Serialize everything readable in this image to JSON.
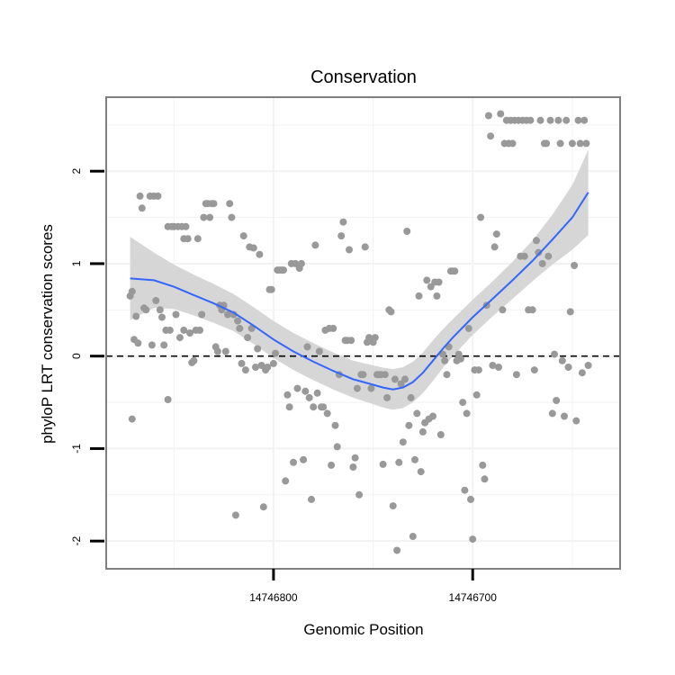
{
  "chart_data": {
    "type": "scatter",
    "title": "Conservation",
    "xlabel": "Genomic Position",
    "ylabel": "phyloP LRT conservation scores",
    "x_reversed": true,
    "xlim": [
      14746884,
      14746626
    ],
    "ylim": [
      -2.3,
      2.8
    ],
    "x_ticks": [
      {
        "value": 14746800,
        "label": "14746800"
      },
      {
        "value": 14746700,
        "label": "14746700"
      }
    ],
    "y_ticks": [
      {
        "value": -2,
        "label": "-2"
      },
      {
        "value": -1,
        "label": "-1"
      },
      {
        "value": 0,
        "label": "0"
      },
      {
        "value": 1,
        "label": "1"
      },
      {
        "value": 2,
        "label": "2"
      }
    ],
    "grid": true,
    "reference_line": {
      "y": 0,
      "style": "dashed"
    },
    "colors": {
      "points": "#999999",
      "smooth_line": "#3366ff",
      "confidence_band": "#d6d6d6",
      "grid": "#f2f2f2",
      "panel_border": "#7f7f7f"
    },
    "points": [
      [
        14746872,
        0.65
      ],
      [
        14746871,
        0.7
      ],
      [
        14746871,
        -0.68
      ],
      [
        14746870,
        0.18
      ],
      [
        14746869,
        0.43
      ],
      [
        14746868,
        0.14
      ],
      [
        14746867,
        1.73
      ],
      [
        14746866,
        1.6
      ],
      [
        14746865,
        0.52
      ],
      [
        14746864,
        0.5
      ],
      [
        14746862,
        1.73
      ],
      [
        14746861,
        0.12
      ],
      [
        14746860,
        1.73
      ],
      [
        14746859,
        0.6
      ],
      [
        14746858,
        1.73
      ],
      [
        14746857,
        0.5
      ],
      [
        14746856,
        0.42
      ],
      [
        14746855,
        0.12
      ],
      [
        14746854,
        0.28
      ],
      [
        14746853,
        1.4
      ],
      [
        14746853,
        -0.47
      ],
      [
        14746852,
        0.28
      ],
      [
        14746851,
        1.4
      ],
      [
        14746850,
        1.4
      ],
      [
        14746849,
        0.45
      ],
      [
        14746848,
        1.4
      ],
      [
        14746847,
        0.2
      ],
      [
        14746846,
        1.4
      ],
      [
        14746845,
        1.27
      ],
      [
        14746845,
        0.28
      ],
      [
        14746844,
        1.4
      ],
      [
        14746843,
        1.27
      ],
      [
        14746842,
        0.25
      ],
      [
        14746841,
        -0.07
      ],
      [
        14746840,
        -0.05
      ],
      [
        14746839,
        0.28
      ],
      [
        14746838,
        1.27
      ],
      [
        14746837,
        0.28
      ],
      [
        14746836,
        0.45
      ],
      [
        14746835,
        1.5
      ],
      [
        14746834,
        1.65
      ],
      [
        14746833,
        1.65
      ],
      [
        14746832,
        1.5
      ],
      [
        14746831,
        1.65
      ],
      [
        14746830,
        1.65
      ],
      [
        14746829,
        0.1
      ],
      [
        14746828,
        0.05
      ],
      [
        14746827,
        0.55
      ],
      [
        14746826,
        0.5
      ],
      [
        14746825,
        0.55
      ],
      [
        14746824,
        0.05
      ],
      [
        14746823,
        0.45
      ],
      [
        14746822,
        1.65
      ],
      [
        14746821,
        1.5
      ],
      [
        14746820,
        0.45
      ],
      [
        14746819,
        -1.72
      ],
      [
        14746818,
        0.38
      ],
      [
        14746817,
        0.3
      ],
      [
        14746816,
        -0.08
      ],
      [
        14746815,
        1.3
      ],
      [
        14746814,
        -0.15
      ],
      [
        14746813,
        0.2
      ],
      [
        14746812,
        1.18
      ],
      [
        14746811,
        0.3
      ],
      [
        14746810,
        1.17
      ],
      [
        14746809,
        -0.12
      ],
      [
        14746808,
        0.08
      ],
      [
        14746807,
        1.1
      ],
      [
        14746806,
        -0.1
      ],
      [
        14746805,
        -1.63
      ],
      [
        14746804,
        -0.15
      ],
      [
        14746803,
        -0.12
      ],
      [
        14746802,
        0.72
      ],
      [
        14746801,
        0.72
      ],
      [
        14746800,
        -0.08
      ],
      [
        14746799,
        0.03
      ],
      [
        14746798,
        0.93
      ],
      [
        14746797,
        0.93
      ],
      [
        14746796,
        0.93
      ],
      [
        14746795,
        0.93
      ],
      [
        14746794,
        -1.35
      ],
      [
        14746793,
        -0.42
      ],
      [
        14746792,
        -0.55
      ],
      [
        14746791,
        1.0
      ],
      [
        14746790,
        -1.15
      ],
      [
        14746789,
        1.0
      ],
      [
        14746788,
        -0.35
      ],
      [
        14746787,
        0.95
      ],
      [
        14746786,
        1.0
      ],
      [
        14746785,
        -1.12
      ],
      [
        14746784,
        -0.38
      ],
      [
        14746783,
        0.1
      ],
      [
        14746782,
        -0.45
      ],
      [
        14746781,
        -1.55
      ],
      [
        14746780,
        -0.55
      ],
      [
        14746779,
        1.2
      ],
      [
        14746778,
        -0.4
      ],
      [
        14746777,
        0.05
      ],
      [
        14746776,
        -0.55
      ],
      [
        14746775,
        -0.55
      ],
      [
        14746774,
        0.28
      ],
      [
        14746773,
        -0.62
      ],
      [
        14746772,
        0.3
      ],
      [
        14746771,
        -1.18
      ],
      [
        14746770,
        0.3
      ],
      [
        14746769,
        -0.75
      ],
      [
        14746768,
        -0.98
      ],
      [
        14746767,
        -0.2
      ],
      [
        14746766,
        1.3
      ],
      [
        14746765,
        1.45
      ],
      [
        14746764,
        0.17
      ],
      [
        14746763,
        0.17
      ],
      [
        14746762,
        1.15
      ],
      [
        14746761,
        0.17
      ],
      [
        14746760,
        -1.2
      ],
      [
        14746759,
        -1.1
      ],
      [
        14746758,
        -0.35
      ],
      [
        14746757,
        -1.5
      ],
      [
        14746756,
        -0.2
      ],
      [
        14746755,
        -0.2
      ],
      [
        14746754,
        1.18
      ],
      [
        14746753,
        0.15
      ],
      [
        14746752,
        0.2
      ],
      [
        14746751,
        -0.35
      ],
      [
        14746750,
        0.15
      ],
      [
        14746749,
        0.2
      ],
      [
        14746748,
        -0.2
      ],
      [
        14746747,
        -0.2
      ],
      [
        14746746,
        -0.2
      ],
      [
        14746745,
        -1.17
      ],
      [
        14746744,
        -0.2
      ],
      [
        14746743,
        -0.45
      ],
      [
        14746742,
        0.5
      ],
      [
        14746741,
        0.48
      ],
      [
        14746740,
        -1.62
      ],
      [
        14746739,
        -0.25
      ],
      [
        14746738,
        -2.1
      ],
      [
        14746737,
        -1.15
      ],
      [
        14746736,
        -0.3
      ],
      [
        14746735,
        -0.93
      ],
      [
        14746734,
        -0.25
      ],
      [
        14746733,
        1.35
      ],
      [
        14746732,
        -0.75
      ],
      [
        14746731,
        -0.45
      ],
      [
        14746730,
        -1.95
      ],
      [
        14746729,
        -1.12
      ],
      [
        14746728,
        -0.62
      ],
      [
        14746727,
        0.65
      ],
      [
        14746726,
        -1.25
      ],
      [
        14746725,
        -0.82
      ],
      [
        14746724,
        -0.72
      ],
      [
        14746723,
        0.82
      ],
      [
        14746722,
        -0.68
      ],
      [
        14746721,
        0.75
      ],
      [
        14746720,
        -0.65
      ],
      [
        14746719,
        0.8
      ],
      [
        14746718,
        0.65
      ],
      [
        14746717,
        0.8
      ],
      [
        14746716,
        -0.85
      ],
      [
        14746715,
        0.02
      ],
      [
        14746714,
        -0.05
      ],
      [
        14746713,
        -0.2
      ],
      [
        14746712,
        0.1
      ],
      [
        14746711,
        0.92
      ],
      [
        14746710,
        0.92
      ],
      [
        14746709,
        0.92
      ],
      [
        14746708,
        -0.05
      ],
      [
        14746707,
        0.02
      ],
      [
        14746706,
        -0.03
      ],
      [
        14746705,
        -0.5
      ],
      [
        14746704,
        -1.45
      ],
      [
        14746703,
        -0.62
      ],
      [
        14746702,
        0.3
      ],
      [
        14746701,
        -1.55
      ],
      [
        14746700,
        -1.98
      ],
      [
        14746699,
        -0.15
      ],
      [
        14746698,
        -0.42
      ],
      [
        14746697,
        -0.15
      ],
      [
        14746696,
        1.5
      ],
      [
        14746695,
        -1.18
      ],
      [
        14746694,
        -1.33
      ],
      [
        14746693,
        0.55
      ],
      [
        14746692,
        2.6
      ],
      [
        14746691,
        2.38
      ],
      [
        14746690,
        -0.1
      ],
      [
        14746689,
        1.18
      ],
      [
        14746688,
        1.32
      ],
      [
        14746687,
        -0.12
      ],
      [
        14746686,
        2.62
      ],
      [
        14746685,
        0.5
      ],
      [
        14746684,
        2.3
      ],
      [
        14746683,
        2.55
      ],
      [
        14746682,
        2.3
      ],
      [
        14746681,
        2.55
      ],
      [
        14746680,
        2.3
      ],
      [
        14746679,
        2.55
      ],
      [
        14746678,
        -0.2
      ],
      [
        14746677,
        2.55
      ],
      [
        14746676,
        1.08
      ],
      [
        14746675,
        2.55
      ],
      [
        14746674,
        1.08
      ],
      [
        14746673,
        2.55
      ],
      [
        14746672,
        0.5
      ],
      [
        14746671,
        2.55
      ],
      [
        14746670,
        0.5
      ],
      [
        14746669,
        -0.15
      ],
      [
        14746668,
        1.25
      ],
      [
        14746667,
        1.12
      ],
      [
        14746666,
        2.55
      ],
      [
        14746665,
        1.0
      ],
      [
        14746664,
        2.3
      ],
      [
        14746663,
        2.3
      ],
      [
        14746662,
        1.08
      ],
      [
        14746661,
        2.55
      ],
      [
        14746660,
        -0.62
      ],
      [
        14746659,
        0.02
      ],
      [
        14746658,
        -0.48
      ],
      [
        14746657,
        2.55
      ],
      [
        14746656,
        2.3
      ],
      [
        14746655,
        -0.05
      ],
      [
        14746654,
        -0.65
      ],
      [
        14746653,
        2.55
      ],
      [
        14746652,
        -0.12
      ],
      [
        14746651,
        0.48
      ],
      [
        14746650,
        2.3
      ],
      [
        14746649,
        0.98
      ],
      [
        14746648,
        -0.7
      ],
      [
        14746647,
        2.55
      ],
      [
        14746646,
        2.3
      ],
      [
        14746645,
        -0.18
      ],
      [
        14746644,
        2.55
      ],
      [
        14746643,
        2.3
      ],
      [
        14746642,
        -0.1
      ]
    ],
    "smooth": [
      [
        14746872,
        0.84
      ],
      [
        14746860,
        0.82
      ],
      [
        14746850,
        0.75
      ],
      [
        14746840,
        0.66
      ],
      [
        14746830,
        0.57
      ],
      [
        14746820,
        0.47
      ],
      [
        14746810,
        0.33
      ],
      [
        14746800,
        0.18
      ],
      [
        14746790,
        0.05
      ],
      [
        14746780,
        -0.06
      ],
      [
        14746770,
        -0.16
      ],
      [
        14746760,
        -0.25
      ],
      [
        14746750,
        -0.31
      ],
      [
        14746745,
        -0.34
      ],
      [
        14746740,
        -0.36
      ],
      [
        14746735,
        -0.34
      ],
      [
        14746730,
        -0.28
      ],
      [
        14746725,
        -0.18
      ],
      [
        14746720,
        -0.05
      ],
      [
        14746715,
        0.08
      ],
      [
        14746710,
        0.2
      ],
      [
        14746700,
        0.42
      ],
      [
        14746690,
        0.62
      ],
      [
        14746680,
        0.82
      ],
      [
        14746670,
        1.03
      ],
      [
        14746660,
        1.26
      ],
      [
        14746650,
        1.5
      ],
      [
        14746642,
        1.77
      ]
    ],
    "band_halfwidth": [
      [
        14746872,
        0.45
      ],
      [
        14746860,
        0.3
      ],
      [
        14746850,
        0.24
      ],
      [
        14746840,
        0.22
      ],
      [
        14746830,
        0.21
      ],
      [
        14746820,
        0.2
      ],
      [
        14746810,
        0.2
      ],
      [
        14746800,
        0.2
      ],
      [
        14746790,
        0.2
      ],
      [
        14746780,
        0.2
      ],
      [
        14746770,
        0.2
      ],
      [
        14746760,
        0.2
      ],
      [
        14746750,
        0.21
      ],
      [
        14746740,
        0.22
      ],
      [
        14746730,
        0.22
      ],
      [
        14746720,
        0.22
      ],
      [
        14746710,
        0.2
      ],
      [
        14746700,
        0.19
      ],
      [
        14746690,
        0.19
      ],
      [
        14746680,
        0.2
      ],
      [
        14746670,
        0.22
      ],
      [
        14746660,
        0.27
      ],
      [
        14746650,
        0.35
      ],
      [
        14746642,
        0.46
      ]
    ]
  }
}
